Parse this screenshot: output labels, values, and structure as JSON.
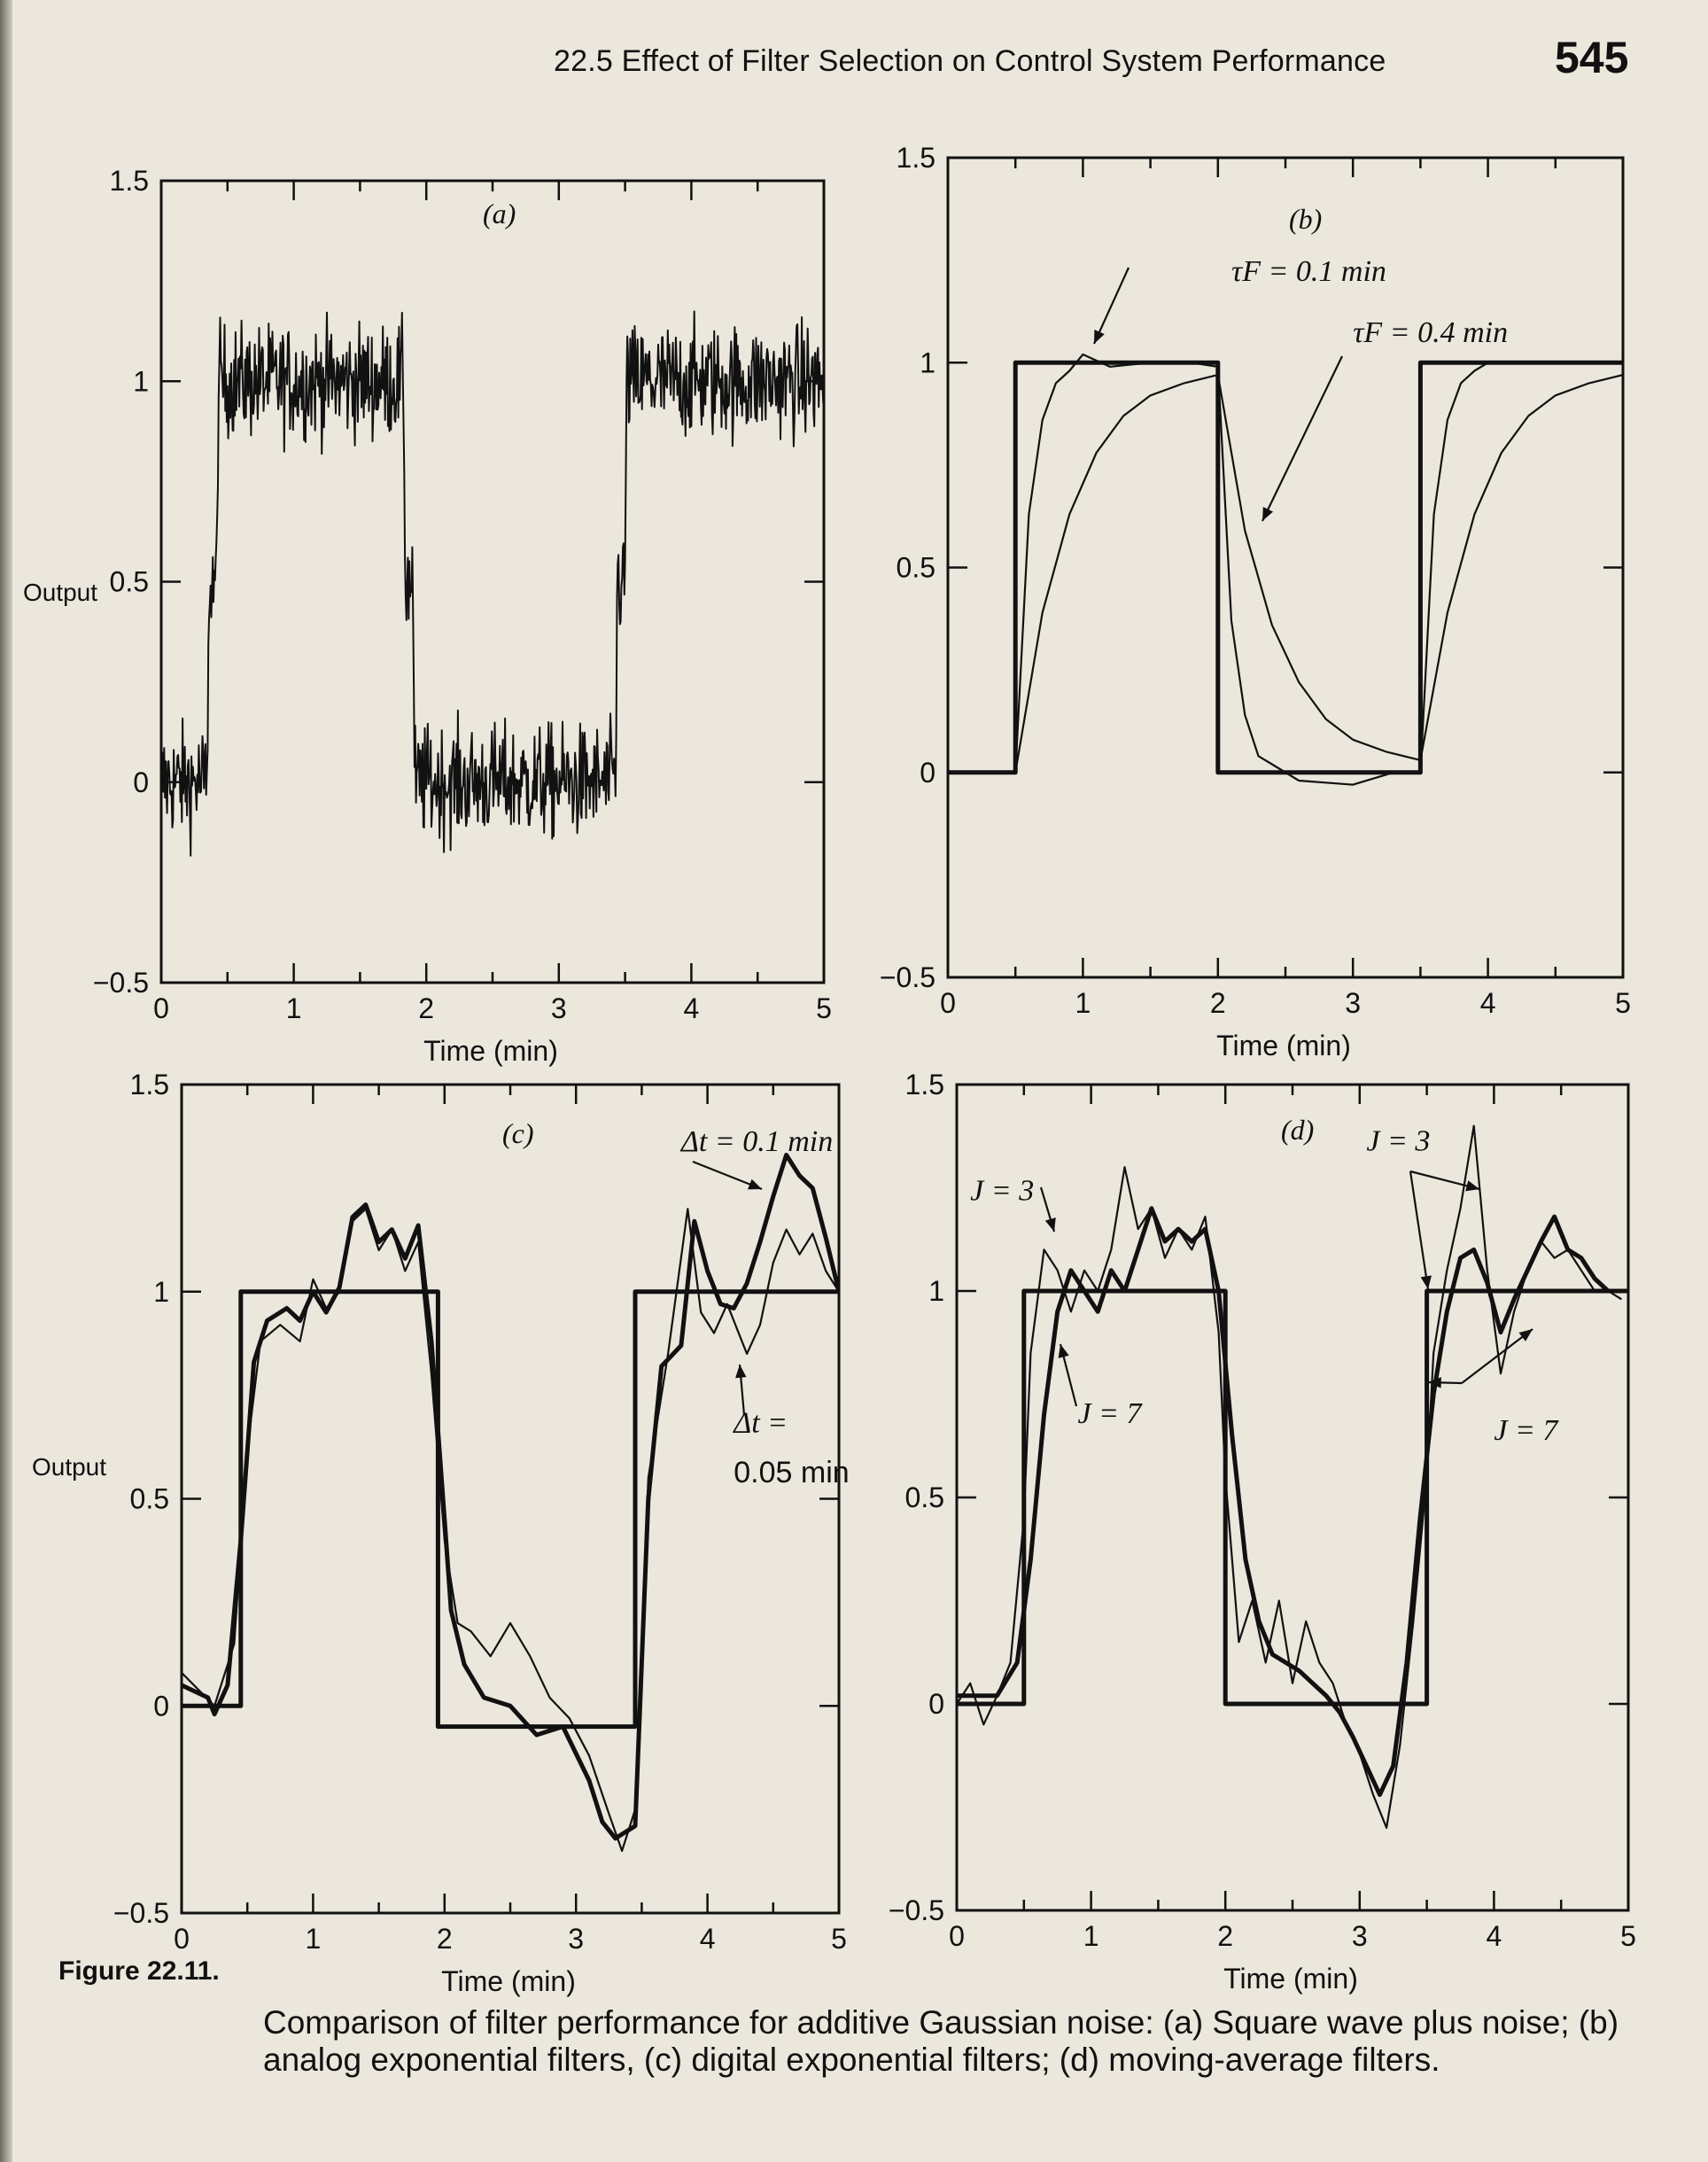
{
  "header": {
    "section_title": "22.5 Effect of Filter Selection on Control System Performance",
    "page_number": "545"
  },
  "caption": {
    "label": "Figure 22.11.",
    "text": "Comparison of filter performance for additive Gaussian noise: (a) Square wave plus noise; (b) analog exponential filters, (c) digital exponential filters; (d) moving-average filters."
  },
  "colors": {
    "ink": "#111111",
    "paper": "#ebe7dc"
  },
  "chart_data": [
    {
      "panel": "(a)",
      "type": "line",
      "xlabel": "Time (min)",
      "ylabel": "Output",
      "xlim": [
        0,
        5
      ],
      "ylim": [
        -0.5,
        1.5
      ],
      "xticks": [
        "0",
        "1",
        "2",
        "3",
        "4",
        "5"
      ],
      "yticks": [
        "-0.5",
        "0",
        "0.5",
        "1",
        "1.5"
      ],
      "grid": false,
      "annotations": [],
      "series": [
        {
          "style": "noisy",
          "noise_amplitude": 0.1,
          "x": [
            0,
            0.35,
            0.36,
            0.42,
            0.43,
            1.83,
            1.84,
            1.9,
            1.91,
            3.43,
            3.44,
            3.5,
            3.51,
            5.0
          ],
          "y": [
            0.0,
            0.0,
            0.5,
            0.5,
            1.0,
            1.0,
            0.5,
            0.5,
            0.0,
            0.0,
            0.5,
            0.5,
            1.0,
            1.0
          ]
        }
      ]
    },
    {
      "panel": "(b)",
      "type": "line",
      "xlabel": "Time (min)",
      "ylabel": "",
      "xlim": [
        0,
        5
      ],
      "ylim": [
        -0.5,
        1.5
      ],
      "xticks": [
        "0",
        "1",
        "2",
        "3",
        "4",
        "5"
      ],
      "yticks": [
        "-0.5",
        "0",
        "0.5",
        "1",
        "1.5"
      ],
      "grid": false,
      "annotations": [
        {
          "text": "τF = 0.1 min",
          "x": 2.1,
          "y": 1.2
        },
        {
          "text": "τF = 0.4 min",
          "x": 3.0,
          "y": 1.05
        }
      ],
      "series": [
        {
          "style": "thick",
          "x": [
            0,
            0.5,
            0.5,
            2.0,
            2.0,
            3.5,
            3.5,
            5.0
          ],
          "y": [
            0,
            0,
            1,
            1,
            0,
            0,
            1,
            1
          ]
        },
        {
          "style": "thin",
          "x": [
            0,
            0.5,
            0.6,
            0.7,
            0.8,
            0.9,
            1.0,
            1.2,
            1.5,
            1.8,
            2.0,
            2.1,
            2.2,
            2.3,
            2.4,
            2.6,
            3.0,
            3.3,
            3.5,
            3.6,
            3.7,
            3.8,
            3.9,
            4.0,
            4.5,
            5.0
          ],
          "y": [
            0,
            0,
            0.63,
            0.86,
            0.95,
            0.98,
            1.02,
            0.99,
            1.0,
            1.0,
            0.99,
            0.37,
            0.14,
            0.04,
            0.02,
            -0.02,
            -0.03,
            0.0,
            0.0,
            0.63,
            0.86,
            0.95,
            0.98,
            1.0,
            1.0,
            1.0
          ]
        },
        {
          "style": "thin",
          "x": [
            0,
            0.5,
            0.7,
            0.9,
            1.1,
            1.3,
            1.5,
            1.75,
            2.0,
            2.2,
            2.4,
            2.6,
            2.8,
            3.0,
            3.25,
            3.5,
            3.7,
            3.9,
            4.1,
            4.3,
            4.5,
            4.75,
            5.0
          ],
          "y": [
            0,
            0,
            0.39,
            0.63,
            0.78,
            0.87,
            0.92,
            0.95,
            0.97,
            0.59,
            0.36,
            0.22,
            0.13,
            0.08,
            0.05,
            0.03,
            0.39,
            0.63,
            0.78,
            0.87,
            0.92,
            0.95,
            0.97
          ]
        }
      ]
    },
    {
      "panel": "(c)",
      "type": "line",
      "xlabel": "Time (min)",
      "ylabel": "Output",
      "xlim": [
        0,
        5
      ],
      "ylim": [
        -0.5,
        1.5
      ],
      "xticks": [
        "0",
        "1",
        "2",
        "3",
        "4",
        "5"
      ],
      "yticks": [
        "-0.5",
        "0",
        "0.5",
        "1",
        "1.5"
      ],
      "grid": false,
      "annotations": [
        {
          "text": "Δt = 0.1 min",
          "x": 3.8,
          "y": 1.34
        },
        {
          "text": "Δt =",
          "x": 4.2,
          "y": 0.66
        },
        {
          "text": "0.05 min",
          "x": 4.2,
          "y": 0.54
        }
      ],
      "series": [
        {
          "style": "thick",
          "x": [
            0,
            0.45,
            0.45,
            1.95,
            1.95,
            3.45,
            3.45,
            5.0
          ],
          "y": [
            0,
            0,
            1,
            1,
            -0.05,
            -0.05,
            1,
            1
          ]
        },
        {
          "style": "thick",
          "x": [
            0,
            0.2,
            0.25,
            0.35,
            0.45,
            0.55,
            0.65,
            0.8,
            0.9,
            1.0,
            1.1,
            1.2,
            1.3,
            1.4,
            1.5,
            1.6,
            1.7,
            1.8,
            1.9,
            2.0,
            2.05,
            2.15,
            2.3,
            2.5,
            2.7,
            2.9,
            3.1,
            3.2,
            3.3,
            3.45,
            3.55,
            3.65,
            3.8,
            3.9,
            4.0,
            4.1,
            4.2,
            4.3,
            4.4,
            4.5,
            4.6,
            4.7,
            4.8,
            4.9,
            5.0
          ],
          "y": [
            0.05,
            0.02,
            -0.02,
            0.05,
            0.4,
            0.83,
            0.93,
            0.96,
            0.93,
            1.0,
            0.95,
            1.01,
            1.18,
            1.21,
            1.12,
            1.15,
            1.08,
            1.16,
            0.88,
            0.45,
            0.23,
            0.1,
            0.02,
            0.0,
            -0.07,
            -0.05,
            -0.18,
            -0.28,
            -0.32,
            -0.29,
            0.5,
            0.82,
            0.87,
            1.17,
            1.05,
            0.97,
            0.96,
            1.02,
            1.12,
            1.23,
            1.33,
            1.28,
            1.25,
            1.13,
            1.0
          ]
        },
        {
          "style": "thin",
          "x": [
            0,
            0.25,
            0.4,
            0.5,
            0.6,
            0.75,
            0.9,
            1.0,
            1.1,
            1.2,
            1.3,
            1.4,
            1.5,
            1.6,
            1.7,
            1.8,
            1.9,
            2.0,
            2.1,
            2.2,
            2.35,
            2.5,
            2.65,
            2.8,
            2.95,
            3.1,
            3.25,
            3.35,
            3.45,
            3.55,
            3.7,
            3.85,
            3.95,
            4.05,
            4.15,
            4.3,
            4.4,
            4.5,
            4.6,
            4.7,
            4.8,
            4.9,
            5.0
          ],
          "y": [
            0.08,
            0.0,
            0.15,
            0.62,
            0.88,
            0.92,
            0.88,
            1.03,
            0.96,
            1.0,
            1.17,
            1.2,
            1.1,
            1.15,
            1.05,
            1.12,
            0.8,
            0.4,
            0.2,
            0.18,
            0.12,
            0.2,
            0.12,
            0.02,
            -0.03,
            -0.12,
            -0.26,
            -0.35,
            -0.25,
            0.55,
            0.85,
            1.2,
            0.95,
            0.9,
            0.97,
            0.85,
            0.92,
            1.07,
            1.15,
            1.09,
            1.14,
            1.05,
            1.0
          ]
        }
      ]
    },
    {
      "panel": "(d)",
      "type": "line",
      "xlabel": "Time (min)",
      "ylabel": "",
      "xlim": [
        0,
        5
      ],
      "ylim": [
        -0.5,
        1.5
      ],
      "xticks": [
        "0",
        "1",
        "2",
        "3",
        "4",
        "5"
      ],
      "yticks": [
        "-0.5",
        "0",
        "0.5",
        "1",
        "1.5"
      ],
      "grid": false,
      "annotations": [
        {
          "text": "J = 3",
          "x": 0.1,
          "y": 1.22
        },
        {
          "text": "J = 3",
          "x": 3.05,
          "y": 1.34
        },
        {
          "text": "J = 7",
          "x": 0.9,
          "y": 0.68
        },
        {
          "text": "J = 7",
          "x": 4.0,
          "y": 0.64
        }
      ],
      "series": [
        {
          "style": "thick",
          "x": [
            0,
            0.5,
            0.5,
            2.0,
            2.0,
            3.5,
            3.5,
            5.0
          ],
          "y": [
            0,
            0,
            1,
            1,
            0,
            0,
            1,
            1
          ]
        },
        {
          "style": "thin",
          "x": [
            0,
            0.1,
            0.2,
            0.3,
            0.4,
            0.5,
            0.55,
            0.65,
            0.75,
            0.85,
            0.95,
            1.05,
            1.15,
            1.25,
            1.35,
            1.45,
            1.55,
            1.65,
            1.75,
            1.85,
            1.95,
            2.0,
            2.1,
            2.2,
            2.3,
            2.4,
            2.5,
            2.6,
            2.7,
            2.8,
            2.9,
            3.0,
            3.1,
            3.2,
            3.3,
            3.4,
            3.5,
            3.55,
            3.65,
            3.75,
            3.85,
            3.95,
            4.05,
            4.15,
            4.25,
            4.35,
            4.45,
            4.55,
            4.65,
            4.75,
            4.85,
            4.95
          ],
          "y": [
            0.0,
            0.05,
            -0.05,
            0.02,
            0.1,
            0.45,
            0.85,
            1.1,
            1.05,
            0.95,
            1.05,
            1.0,
            1.1,
            1.3,
            1.15,
            1.2,
            1.08,
            1.15,
            1.1,
            1.18,
            0.9,
            0.55,
            0.15,
            0.25,
            0.1,
            0.25,
            0.05,
            0.2,
            0.1,
            0.05,
            -0.05,
            -0.12,
            -0.22,
            -0.3,
            -0.1,
            0.2,
            0.55,
            0.85,
            1.05,
            1.2,
            1.4,
            1.05,
            0.8,
            0.95,
            1.05,
            1.12,
            1.08,
            1.1,
            1.05,
            1.0,
            1.0,
            0.98
          ]
        },
        {
          "style": "thick",
          "x": [
            0,
            0.3,
            0.45,
            0.55,
            0.65,
            0.75,
            0.85,
            0.95,
            1.05,
            1.15,
            1.25,
            1.35,
            1.45,
            1.55,
            1.65,
            1.75,
            1.85,
            1.95,
            2.05,
            2.15,
            2.25,
            2.35,
            2.45,
            2.55,
            2.65,
            2.75,
            2.85,
            2.95,
            3.05,
            3.15,
            3.25,
            3.35,
            3.45,
            3.55,
            3.65,
            3.75,
            3.85,
            3.95,
            4.05,
            4.15,
            4.25,
            4.35,
            4.45,
            4.55,
            4.65,
            4.75,
            4.85,
            4.95
          ],
          "y": [
            0.02,
            0.02,
            0.1,
            0.35,
            0.7,
            0.95,
            1.05,
            1.0,
            0.95,
            1.05,
            1.0,
            1.1,
            1.2,
            1.12,
            1.15,
            1.12,
            1.15,
            1.0,
            0.65,
            0.35,
            0.2,
            0.12,
            0.1,
            0.08,
            0.05,
            0.02,
            -0.02,
            -0.08,
            -0.15,
            -0.22,
            -0.15,
            0.1,
            0.45,
            0.75,
            0.95,
            1.08,
            1.1,
            1.02,
            0.9,
            0.98,
            1.05,
            1.12,
            1.18,
            1.1,
            1.08,
            1.03,
            1.0,
            1.0
          ]
        }
      ]
    }
  ]
}
